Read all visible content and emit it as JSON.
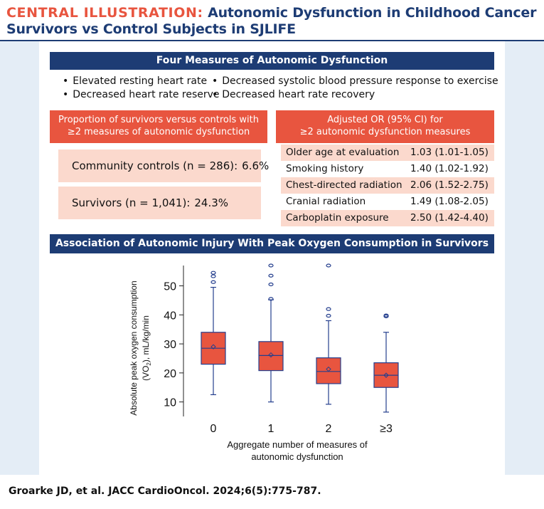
{
  "header": {
    "label": "CENTRAL ILLUSTRATION:",
    "title_part1": "Autonomic Dysfunction in Childhood Cancer",
    "title_part2": "Survivors vs Control Subjects in SJLIFE"
  },
  "measures": {
    "title": "Four Measures of Autonomic Dysfunction",
    "items": [
      "Elevated resting heart rate",
      "Decreased systolic blood pressure response to exercise",
      "Decreased heart rate reserve",
      "Decreased heart rate recovery"
    ],
    "bullet": "•"
  },
  "proportion": {
    "header_line1": "Proportion of survivors versus controls with",
    "header_line2": "≥2 measures of autonomic dysfunction",
    "rows": [
      {
        "label": "Community controls (n = 286):",
        "value": "6.6%"
      },
      {
        "label": "Survivors (n = 1,041):",
        "value": "24.3%"
      }
    ]
  },
  "odds": {
    "header_line1": "Adjusted OR (95% CI) for",
    "header_line2": "≥2 autonomic dysfunction measures",
    "rows": [
      {
        "label": "Older age at evaluation",
        "value": "1.03 (1.01-1.05)"
      },
      {
        "label": "Smoking history",
        "value": "1.40 (1.02-1.92)"
      },
      {
        "label": "Chest-directed radiation",
        "value": "2.06 (1.52-2.75)"
      },
      {
        "label": "Cranial radiation",
        "value": "1.49 (1.08-2.05)"
      },
      {
        "label": "Carboplatin exposure",
        "value": "2.50 (1.42-4.40)"
      }
    ]
  },
  "association": {
    "title": "Association of Autonomic Injury With Peak Oxygen Consumption in Survivors"
  },
  "chart_data": {
    "type": "box",
    "title": "Association of Autonomic Injury With Peak Oxygen Consumption in Survivors",
    "ylabel_line1": "Absolute peak oxygen consumption",
    "ylabel_line2_prefix": "(VO",
    "ylabel_line2_sub": "2",
    "ylabel_line2_suffix": "), mL/kg/min",
    "xlabel_line1": "Aggregate number of measures of",
    "xlabel_line2": "autonomic dysfunction",
    "ylim": [
      5,
      57
    ],
    "yticks": [
      "10",
      "20",
      "30",
      "40",
      "50"
    ],
    "categories": [
      "0",
      "1",
      "2",
      "≥3"
    ],
    "series": [
      {
        "name": "0",
        "whisker_low": 12.5,
        "q1": 23,
        "median": 28.5,
        "q3": 34,
        "whisker_high": 49.5,
        "mean": 29,
        "outliers": [
          51.3,
          53.3,
          54.5
        ]
      },
      {
        "name": "1",
        "whisker_low": 10,
        "q1": 20.8,
        "median": 26,
        "q3": 30.8,
        "whisker_high": 45.2,
        "mean": 26.2,
        "outliers": [
          45.5,
          50.5,
          53.5,
          57
        ]
      },
      {
        "name": "2",
        "whisker_low": 9.2,
        "q1": 16.3,
        "median": 20.5,
        "q3": 25.2,
        "whisker_high": 38,
        "mean": 21.3,
        "outliers": [
          39.7,
          42,
          57
        ]
      },
      {
        "name": "≥3",
        "whisker_low": 6.5,
        "q1": 15,
        "median": 19.2,
        "q3": 23.5,
        "whisker_high": 34,
        "mean": 19.2,
        "outliers": [
          39.5,
          39.8
        ]
      }
    ],
    "colors": {
      "box_fill": "#e8553f",
      "stroke": "#253f8e"
    }
  },
  "citation": "Groarke JD, et al. JACC CardioOncol. 2024;6(5):775-787."
}
